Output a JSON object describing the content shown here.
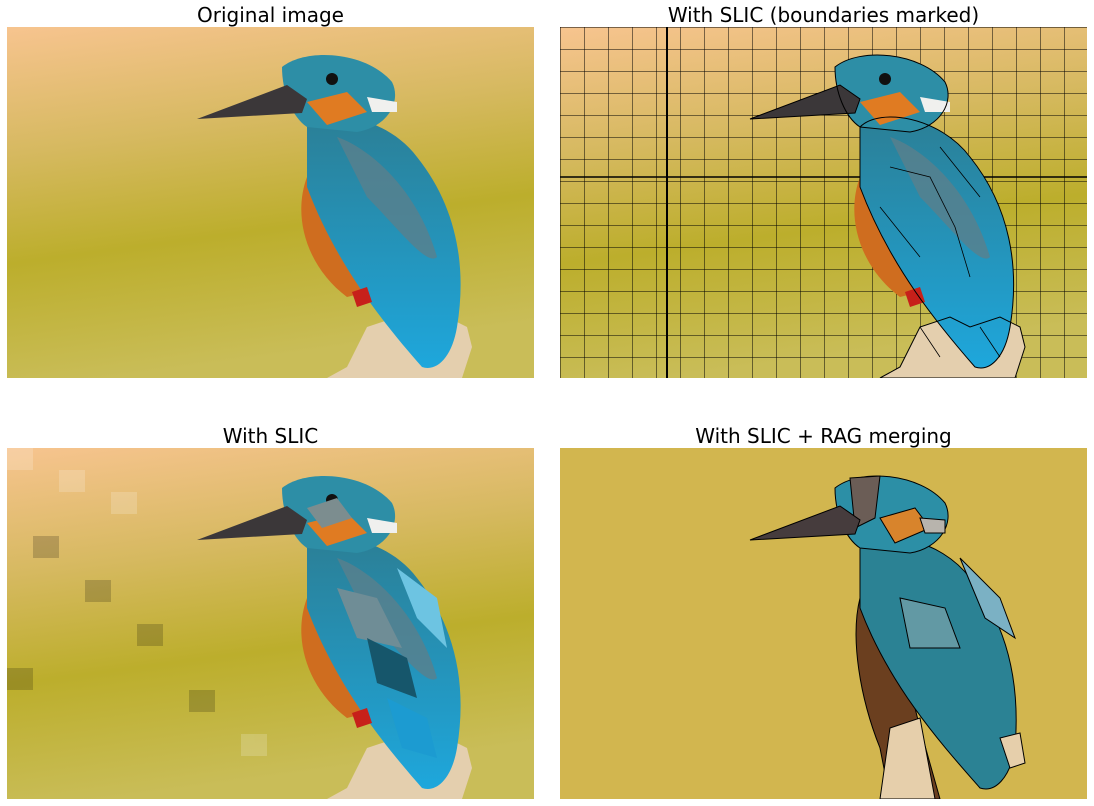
{
  "figure": {
    "panels": [
      {
        "title": "Original image"
      },
      {
        "title": "With SLIC (boundaries marked)"
      },
      {
        "title": "With SLIC"
      },
      {
        "title": "With SLIC + RAG merging"
      }
    ]
  },
  "colors": {
    "bg_peach": "#f6c48e",
    "bg_olive": "#b8ad2a",
    "bg_olive_light": "#c9bb55",
    "merged_bg": "#d2b64f",
    "bird_teal": "#2c8fa6",
    "bird_blue": "#1fa6d9",
    "bird_orange": "#d4792a",
    "beak": "#3a3638",
    "perch": "#e4cfae",
    "legs_red": "#c7201a",
    "boundary": "#000000"
  }
}
